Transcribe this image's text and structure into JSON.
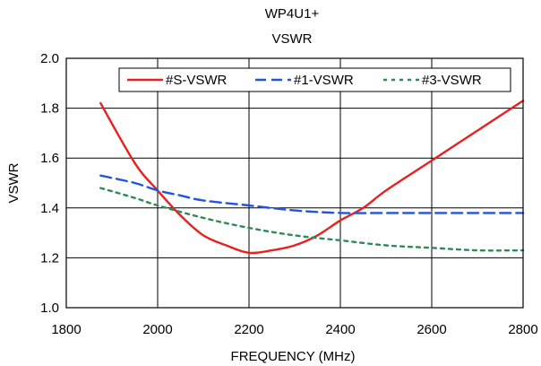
{
  "chart_data": {
    "type": "line",
    "title": "WP4U1+",
    "subtitle": "VSWR",
    "xlabel": "FREQUENCY (MHz)",
    "ylabel": "VSWR",
    "xlim": [
      1800,
      2800
    ],
    "ylim": [
      1.0,
      2.0
    ],
    "xticks": [
      1800,
      2000,
      2200,
      2400,
      2600,
      2800
    ],
    "yticks": [
      1.0,
      1.2,
      1.4,
      1.6,
      1.8,
      2.0
    ],
    "ytick_labels": [
      "1.0",
      "1.2",
      "1.4",
      "1.6",
      "1.8",
      "2.0"
    ],
    "xtick_labels": [
      "1800",
      "2000",
      "2200",
      "2400",
      "2600",
      "2800"
    ],
    "grid": true,
    "legend_position": "top-right",
    "series": [
      {
        "name": "#S-VSWR",
        "color": "#e8201e",
        "dash": "solid",
        "x": [
          1875,
          1950,
          2000,
          2050,
          2100,
          2150,
          2200,
          2250,
          2300,
          2350,
          2400,
          2450,
          2500,
          2600,
          2700,
          2800
        ],
        "y": [
          1.82,
          1.58,
          1.47,
          1.37,
          1.29,
          1.25,
          1.22,
          1.23,
          1.25,
          1.29,
          1.35,
          1.4,
          1.47,
          1.59,
          1.71,
          1.83
        ]
      },
      {
        "name": "#1-VSWR",
        "color": "#2255dd",
        "dash": "dashed",
        "x": [
          1875,
          1950,
          2000,
          2050,
          2100,
          2200,
          2300,
          2400,
          2500,
          2600,
          2700,
          2800
        ],
        "y": [
          1.53,
          1.5,
          1.47,
          1.45,
          1.43,
          1.41,
          1.39,
          1.38,
          1.38,
          1.38,
          1.38,
          1.38
        ]
      },
      {
        "name": "#3-VSWR",
        "color": "#2e8b57",
        "dash": "dotted",
        "x": [
          1875,
          1950,
          2000,
          2100,
          2200,
          2300,
          2400,
          2500,
          2600,
          2700,
          2800
        ],
        "y": [
          1.48,
          1.44,
          1.41,
          1.36,
          1.32,
          1.29,
          1.27,
          1.25,
          1.24,
          1.23,
          1.23
        ]
      }
    ]
  }
}
